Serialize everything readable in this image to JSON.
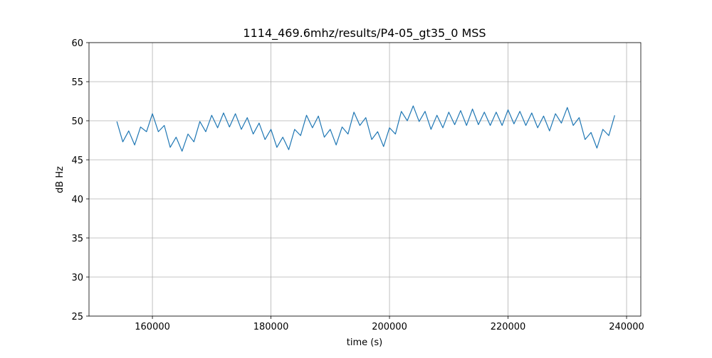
{
  "chart_data": {
    "type": "line",
    "title": "1114_469.6mhz/results/P4-05_gt35_0 MSS",
    "xlabel": "time (s)",
    "ylabel": "dB Hz",
    "color": "#1f77b4",
    "grid": true,
    "xlim": [
      149300,
      242400
    ],
    "xticks": [
      160000,
      180000,
      200000,
      220000,
      240000
    ],
    "ylim": [
      25,
      60
    ],
    "yticks": [
      25,
      30,
      35,
      40,
      45,
      50,
      55,
      60
    ],
    "x": [
      154000,
      155000,
      156000,
      157000,
      158000,
      159000,
      160000,
      161000,
      162000,
      163000,
      164000,
      165000,
      166000,
      167000,
      168000,
      169000,
      170000,
      171000,
      172000,
      173000,
      174000,
      175000,
      176000,
      177000,
      178000,
      179000,
      180000,
      181000,
      182000,
      183000,
      184000,
      185000,
      186000,
      187000,
      188000,
      189000,
      190000,
      191000,
      192000,
      193000,
      194000,
      195000,
      196000,
      197000,
      198000,
      199000,
      200000,
      201000,
      202000,
      203000,
      204000,
      205000,
      206000,
      207000,
      208000,
      209000,
      210000,
      211000,
      212000,
      213000,
      214000,
      215000,
      216000,
      217000,
      218000,
      219000,
      220000,
      221000,
      222000,
      223000,
      224000,
      225000,
      226000,
      227000,
      228000,
      229000,
      230000,
      231000,
      232000,
      233000,
      234000,
      235000,
      236000,
      237000,
      238000
    ],
    "values": [
      49.9,
      47.3,
      48.7,
      46.9,
      49.2,
      48.6,
      50.9,
      48.6,
      49.4,
      46.6,
      47.9,
      46.1,
      48.3,
      47.3,
      49.9,
      48.6,
      50.7,
      49.1,
      51.0,
      49.2,
      50.9,
      48.9,
      50.4,
      48.3,
      49.7,
      47.6,
      48.9,
      46.6,
      47.9,
      46.3,
      48.9,
      48.1,
      50.7,
      49.1,
      50.6,
      47.9,
      48.9,
      46.9,
      49.2,
      48.3,
      51.1,
      49.4,
      50.4,
      47.6,
      48.6,
      46.7,
      49.1,
      48.3,
      51.2,
      50.0,
      51.9,
      49.9,
      51.2,
      48.9,
      50.7,
      49.1,
      51.1,
      49.5,
      51.3,
      49.4,
      51.5,
      49.5,
      51.1,
      49.4,
      51.1,
      49.4,
      51.4,
      49.6,
      51.2,
      49.4,
      51.0,
      49.1,
      50.6,
      48.7,
      50.9,
      49.7,
      51.7,
      49.4,
      50.4,
      47.6,
      48.5,
      46.5,
      48.9,
      48.1,
      50.7
    ]
  }
}
